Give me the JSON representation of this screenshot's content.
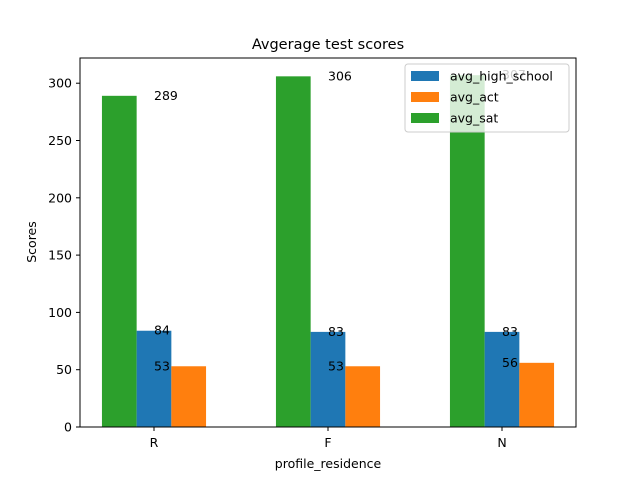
{
  "chart_data": {
    "type": "bar",
    "title": "Avgerage test scores",
    "xlabel": "profile_residence",
    "ylabel": "Scores",
    "categories": [
      "R",
      "F",
      "N"
    ],
    "series": [
      {
        "name": "avg_high_school",
        "values": [
          84,
          83,
          83
        ],
        "color": "#1f77b4"
      },
      {
        "name": "avg_act",
        "values": [
          53,
          53,
          56
        ],
        "color": "#ff7f0e"
      },
      {
        "name": "avg_sat",
        "values": [
          289,
          306,
          307
        ],
        "color": "#2ca02c"
      }
    ],
    "value_labels": {
      "avg_high_school": [
        "84",
        "83",
        "83"
      ],
      "avg_act": [
        "53",
        "53",
        "56"
      ],
      "avg_sat": [
        "289",
        "306",
        "307"
      ]
    },
    "ylim": [
      0,
      322
    ],
    "yticks": [
      0,
      50,
      100,
      150,
      200,
      250,
      300
    ],
    "grid": false,
    "legend_position": "top-right"
  }
}
